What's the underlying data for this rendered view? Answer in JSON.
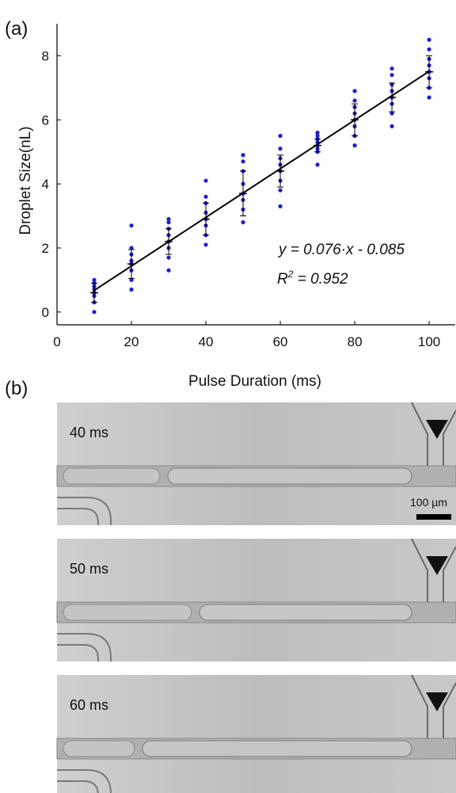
{
  "panel_label_a": "(a)",
  "panel_label_b": "(b)",
  "chart_data": {
    "type": "scatter",
    "x_label": "Pulse Duration (ms)",
    "y_label": "Droplet Size(nL)",
    "xlim": [
      0,
      107
    ],
    "ylim": [
      -0.4,
      9
    ],
    "xticks": [
      0,
      20,
      40,
      60,
      80,
      100
    ],
    "yticks": [
      0,
      2,
      4,
      6,
      8
    ],
    "points": {
      "color": "#1f1fd0",
      "x": [
        10,
        10,
        10,
        10,
        10,
        10,
        10,
        10,
        20,
        20,
        20,
        20,
        20,
        20,
        20,
        20,
        30,
        30,
        30,
        30,
        30,
        30,
        30,
        30,
        40,
        40,
        40,
        40,
        40,
        40,
        40,
        40,
        50,
        50,
        50,
        50,
        50,
        50,
        50,
        50,
        60,
        60,
        60,
        60,
        60,
        60,
        60,
        60,
        70,
        70,
        70,
        70,
        70,
        70,
        70,
        70,
        80,
        80,
        80,
        80,
        80,
        80,
        80,
        80,
        90,
        90,
        90,
        90,
        90,
        90,
        90,
        90,
        100,
        100,
        100,
        100,
        100,
        100,
        100,
        100
      ],
      "y": [
        0.0,
        0.3,
        0.5,
        0.6,
        0.7,
        0.8,
        0.9,
        1.0,
        0.7,
        1.0,
        1.3,
        1.5,
        1.6,
        1.8,
        2.0,
        2.7,
        1.3,
        1.7,
        2.0,
        2.2,
        2.4,
        2.6,
        2.8,
        2.9,
        2.1,
        2.4,
        2.7,
        2.9,
        3.1,
        3.4,
        3.6,
        4.1,
        2.8,
        3.2,
        3.5,
        3.7,
        4.0,
        4.4,
        4.7,
        4.9,
        3.3,
        3.8,
        4.1,
        4.4,
        4.6,
        4.8,
        5.1,
        5.5,
        4.6,
        5.0,
        5.1,
        5.2,
        5.3,
        5.4,
        5.5,
        5.6,
        5.2,
        5.5,
        5.8,
        6.0,
        6.2,
        6.4,
        6.6,
        6.9,
        5.8,
        6.2,
        6.5,
        6.7,
        6.9,
        7.1,
        7.4,
        7.6,
        6.7,
        7.0,
        7.3,
        7.5,
        7.7,
        7.9,
        8.2,
        8.5
      ]
    },
    "error_bars": {
      "color": "#000000",
      "x": [
        10,
        20,
        30,
        40,
        50,
        60,
        70,
        80,
        90,
        100
      ],
      "means": [
        0.6,
        1.5,
        2.2,
        2.9,
        3.7,
        4.4,
        5.2,
        6.0,
        6.7,
        7.5
      ],
      "errors": [
        0.3,
        0.45,
        0.4,
        0.5,
        0.7,
        0.5,
        0.2,
        0.5,
        0.45,
        0.5
      ]
    },
    "fit": {
      "slope": 0.076,
      "intercept": -0.085,
      "color": "#000000"
    },
    "annotation": "y = 0.076·x - 0.085",
    "r2": {
      "symbol": "R",
      "exponent": "2",
      "text": " = 0.952"
    }
  },
  "images": [
    {
      "label": "40 ms"
    },
    {
      "label": "50 ms"
    },
    {
      "label": "60 ms"
    }
  ],
  "scale_bar": "100 µm"
}
